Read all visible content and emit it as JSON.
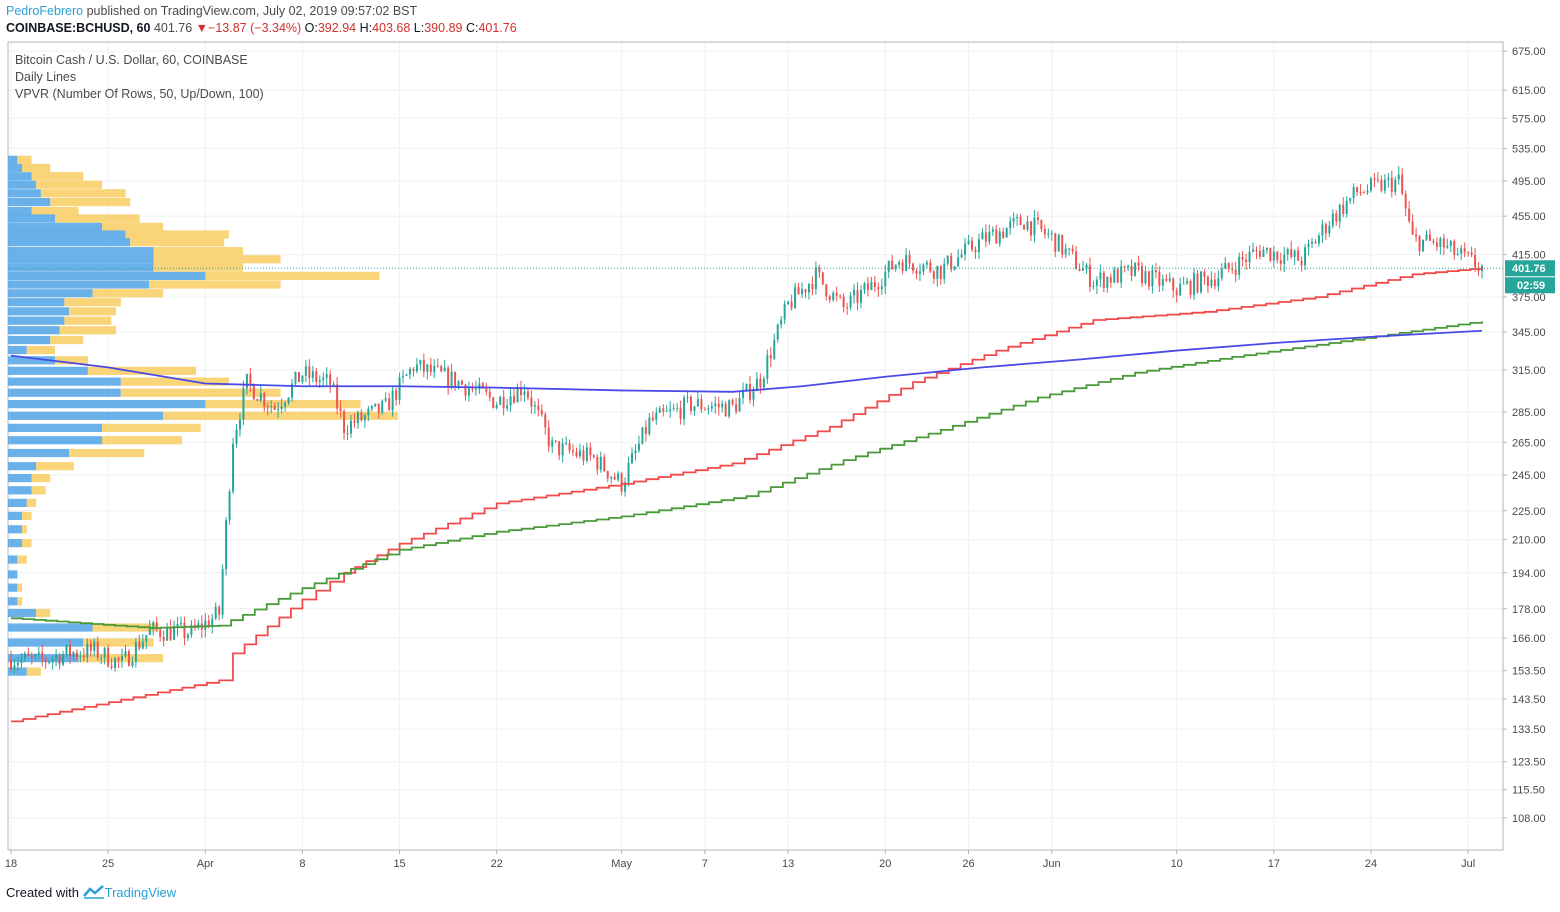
{
  "header": {
    "author": "PedroFebrero",
    "published_text": " published on TradingView.com, July 02, 2019 09:57:02 BST",
    "symbol": "COINBASE:BCHUSD, 60",
    "last": "401.76",
    "change": "−13.87 (−3.34%)",
    "o_label": "O:",
    "o": "392.94",
    "h_label": "H:",
    "h": "403.68",
    "l_label": "L:",
    "l": "390.89",
    "c_label": "C:",
    "c": "401.76"
  },
  "legend": {
    "title": "Bitcoin Cash / U.S. Dollar, 60, COINBASE",
    "indicator1": "Daily Lines",
    "indicator2": "VPVR (Number Of Rows, 50, Up/Down, 100)"
  },
  "footer": {
    "created_with": "Created with",
    "brand": "TradingView"
  },
  "colors": {
    "up": "#26a69a",
    "down": "#ef5350",
    "red_line": "#f24a4a",
    "green_line": "#4a9a3a",
    "blue_line": "#4a4ae8",
    "vp_up": "#5aa8e8",
    "vp_down": "#f8cf6a",
    "price_label": "#26a69a"
  },
  "chart_data": {
    "type": "candlestick",
    "y_scale": "log",
    "ylim": [
      100,
      690
    ],
    "y_ticks": [
      "675.00",
      "615.00",
      "575.00",
      "535.00",
      "495.00",
      "455.00",
      "415.00",
      "375.00",
      "345.00",
      "315.00",
      "285.00",
      "265.00",
      "245.00",
      "225.00",
      "210.00",
      "194.00",
      "178.00",
      "166.00",
      "153.50",
      "143.50",
      "133.50",
      "123.50",
      "115.50",
      "108.00"
    ],
    "y_tick_values": [
      675,
      615,
      575,
      535,
      495,
      455,
      415,
      375,
      345,
      315,
      285,
      265,
      245,
      225,
      210,
      194,
      178,
      166,
      153.5,
      143.5,
      133.5,
      123.5,
      115.5,
      108
    ],
    "x_start": "2019-03-18",
    "x_end": "2019-07-02",
    "x_ticks": [
      {
        "label": "18",
        "date": "2019-03-18"
      },
      {
        "label": "25",
        "date": "2019-03-25"
      },
      {
        "label": "Apr",
        "date": "2019-04-01"
      },
      {
        "label": "8",
        "date": "2019-04-08"
      },
      {
        "label": "15",
        "date": "2019-04-15"
      },
      {
        "label": "22",
        "date": "2019-04-22"
      },
      {
        "label": "May",
        "date": "2019-05-01"
      },
      {
        "label": "7",
        "date": "2019-05-07"
      },
      {
        "label": "13",
        "date": "2019-05-13"
      },
      {
        "label": "20",
        "date": "2019-05-20"
      },
      {
        "label": "26",
        "date": "2019-05-26"
      },
      {
        "label": "Jun",
        "date": "2019-06-01"
      },
      {
        "label": "10",
        "date": "2019-06-10"
      },
      {
        "label": "17",
        "date": "2019-06-17"
      },
      {
        "label": "24",
        "date": "2019-06-24"
      },
      {
        "label": "Jul",
        "date": "2019-07-01"
      }
    ],
    "price_path": [
      {
        "date": "2019-03-18",
        "price": 158
      },
      {
        "date": "2019-03-20",
        "price": 157
      },
      {
        "date": "2019-03-22",
        "price": 160
      },
      {
        "date": "2019-03-24",
        "price": 161
      },
      {
        "date": "2019-03-26",
        "price": 156
      },
      {
        "date": "2019-03-28",
        "price": 169
      },
      {
        "date": "2019-03-31",
        "price": 168
      },
      {
        "date": "2019-04-02",
        "price": 176
      },
      {
        "date": "2019-04-03",
        "price": 268
      },
      {
        "date": "2019-04-04",
        "price": 305
      },
      {
        "date": "2019-04-06",
        "price": 288
      },
      {
        "date": "2019-04-08",
        "price": 312
      },
      {
        "date": "2019-04-10",
        "price": 305
      },
      {
        "date": "2019-04-11",
        "price": 275
      },
      {
        "date": "2019-04-14",
        "price": 288
      },
      {
        "date": "2019-04-16",
        "price": 318
      },
      {
        "date": "2019-04-19",
        "price": 307
      },
      {
        "date": "2019-04-22",
        "price": 292
      },
      {
        "date": "2019-04-24",
        "price": 303
      },
      {
        "date": "2019-04-26",
        "price": 262
      },
      {
        "date": "2019-04-29",
        "price": 255
      },
      {
        "date": "2019-05-01",
        "price": 240
      },
      {
        "date": "2019-05-03",
        "price": 278
      },
      {
        "date": "2019-05-06",
        "price": 290
      },
      {
        "date": "2019-05-09",
        "price": 288
      },
      {
        "date": "2019-05-11",
        "price": 308
      },
      {
        "date": "2019-05-13",
        "price": 368
      },
      {
        "date": "2019-05-15",
        "price": 395
      },
      {
        "date": "2019-05-17",
        "price": 365
      },
      {
        "date": "2019-05-19",
        "price": 385
      },
      {
        "date": "2019-05-21",
        "price": 410
      },
      {
        "date": "2019-05-24",
        "price": 400
      },
      {
        "date": "2019-05-27",
        "price": 430
      },
      {
        "date": "2019-05-30",
        "price": 450
      },
      {
        "date": "2019-06-01",
        "price": 432
      },
      {
        "date": "2019-06-04",
        "price": 390
      },
      {
        "date": "2019-06-07",
        "price": 398
      },
      {
        "date": "2019-06-10",
        "price": 382
      },
      {
        "date": "2019-06-13",
        "price": 395
      },
      {
        "date": "2019-06-16",
        "price": 420
      },
      {
        "date": "2019-06-19",
        "price": 410
      },
      {
        "date": "2019-06-21",
        "price": 450
      },
      {
        "date": "2019-06-23",
        "price": 482
      },
      {
        "date": "2019-06-26",
        "price": 495
      },
      {
        "date": "2019-06-27",
        "price": 430
      },
      {
        "date": "2019-06-29",
        "price": 425
      },
      {
        "date": "2019-07-02",
        "price": 401.76
      }
    ],
    "series": [
      {
        "color": "red",
        "points": [
          {
            "date": "2019-03-18",
            "price": 136
          },
          {
            "date": "2019-04-02",
            "price": 150
          },
          {
            "date": "2019-04-03",
            "price": 160
          },
          {
            "date": "2019-04-08",
            "price": 182
          },
          {
            "date": "2019-04-11",
            "price": 194
          },
          {
            "date": "2019-04-15",
            "price": 208
          },
          {
            "date": "2019-04-22",
            "price": 229
          },
          {
            "date": "2019-05-01",
            "price": 240
          },
          {
            "date": "2019-05-09",
            "price": 252
          },
          {
            "date": "2019-05-16",
            "price": 275
          },
          {
            "date": "2019-05-22",
            "price": 306
          },
          {
            "date": "2019-05-28",
            "price": 330
          },
          {
            "date": "2019-06-04",
            "price": 355
          },
          {
            "date": "2019-06-12",
            "price": 362
          },
          {
            "date": "2019-06-20",
            "price": 375
          },
          {
            "date": "2019-06-27",
            "price": 396
          },
          {
            "date": "2019-07-02",
            "price": 402
          }
        ]
      },
      {
        "color": "green",
        "points": [
          {
            "date": "2019-03-18",
            "price": 174
          },
          {
            "date": "2019-03-28",
            "price": 170
          },
          {
            "date": "2019-04-02",
            "price": 171
          },
          {
            "date": "2019-04-08",
            "price": 187
          },
          {
            "date": "2019-04-15",
            "price": 205
          },
          {
            "date": "2019-04-22",
            "price": 214
          },
          {
            "date": "2019-05-01",
            "price": 222
          },
          {
            "date": "2019-05-10",
            "price": 233
          },
          {
            "date": "2019-05-17",
            "price": 254
          },
          {
            "date": "2019-05-24",
            "price": 273
          },
          {
            "date": "2019-05-31",
            "price": 295
          },
          {
            "date": "2019-06-07",
            "price": 313
          },
          {
            "date": "2019-06-14",
            "price": 325
          },
          {
            "date": "2019-06-21",
            "price": 336
          },
          {
            "date": "2019-07-02",
            "price": 354
          }
        ]
      },
      {
        "color": "blue",
        "points": [
          {
            "date": "2019-03-18",
            "price": 326
          },
          {
            "date": "2019-03-25",
            "price": 317
          },
          {
            "date": "2019-04-01",
            "price": 305
          },
          {
            "date": "2019-04-08",
            "price": 303
          },
          {
            "date": "2019-04-15",
            "price": 303
          },
          {
            "date": "2019-04-22",
            "price": 302
          },
          {
            "date": "2019-05-01",
            "price": 300
          },
          {
            "date": "2019-05-09",
            "price": 299
          },
          {
            "date": "2019-05-14",
            "price": 303
          },
          {
            "date": "2019-05-20",
            "price": 310
          },
          {
            "date": "2019-05-27",
            "price": 317
          },
          {
            "date": "2019-06-03",
            "price": 323
          },
          {
            "date": "2019-06-10",
            "price": 330
          },
          {
            "date": "2019-06-17",
            "price": 336
          },
          {
            "date": "2019-06-24",
            "price": 341
          },
          {
            "date": "2019-07-02",
            "price": 346
          }
        ]
      }
    ],
    "volume_profile": [
      {
        "price": 520,
        "up": 2,
        "down": 3
      },
      {
        "price": 510,
        "up": 3,
        "down": 6
      },
      {
        "price": 500,
        "up": 5,
        "down": 11
      },
      {
        "price": 490,
        "up": 6,
        "down": 14
      },
      {
        "price": 480,
        "up": 7,
        "down": 18
      },
      {
        "price": 470,
        "up": 9,
        "down": 17
      },
      {
        "price": 460,
        "up": 5,
        "down": 10
      },
      {
        "price": 452,
        "up": 10,
        "down": 18
      },
      {
        "price": 443,
        "up": 20,
        "down": 13
      },
      {
        "price": 435,
        "up": 25,
        "down": 22
      },
      {
        "price": 427,
        "up": 26,
        "down": 20
      },
      {
        "price": 418,
        "up": 31,
        "down": 19
      },
      {
        "price": 410,
        "up": 31,
        "down": 27
      },
      {
        "price": 402,
        "up": 31,
        "down": 19
      },
      {
        "price": 394,
        "up": 42,
        "down": 37
      },
      {
        "price": 386,
        "up": 30,
        "down": 28
      },
      {
        "price": 378,
        "up": 18,
        "down": 15
      },
      {
        "price": 370,
        "up": 12,
        "down": 12
      },
      {
        "price": 362,
        "up": 13,
        "down": 10
      },
      {
        "price": 354,
        "up": 12,
        "down": 10
      },
      {
        "price": 346,
        "up": 11,
        "down": 12
      },
      {
        "price": 338,
        "up": 9,
        "down": 7
      },
      {
        "price": 330,
        "up": 4,
        "down": 6
      },
      {
        "price": 322,
        "up": 10,
        "down": 7
      },
      {
        "price": 314,
        "up": 17,
        "down": 23
      },
      {
        "price": 306,
        "up": 24,
        "down": 23
      },
      {
        "price": 298,
        "up": 24,
        "down": 34
      },
      {
        "price": 290,
        "up": 42,
        "down": 33
      },
      {
        "price": 282,
        "up": 33,
        "down": 50
      },
      {
        "price": 274,
        "up": 20,
        "down": 21
      },
      {
        "price": 266,
        "up": 20,
        "down": 17
      },
      {
        "price": 258,
        "up": 13,
        "down": 16
      },
      {
        "price": 250,
        "up": 6,
        "down": 8
      },
      {
        "price": 243,
        "up": 5,
        "down": 4
      },
      {
        "price": 236,
        "up": 5,
        "down": 3
      },
      {
        "price": 229,
        "up": 4,
        "down": 2
      },
      {
        "price": 222,
        "up": 3,
        "down": 2
      },
      {
        "price": 215,
        "up": 3,
        "down": 1
      },
      {
        "price": 208,
        "up": 3,
        "down": 2
      },
      {
        "price": 200,
        "up": 2,
        "down": 2
      },
      {
        "price": 193,
        "up": 2,
        "down": 0
      },
      {
        "price": 187,
        "up": 2,
        "down": 1
      },
      {
        "price": 181,
        "up": 2,
        "down": 1
      },
      {
        "price": 176,
        "up": 6,
        "down": 3
      },
      {
        "price": 170,
        "up": 18,
        "down": 14
      },
      {
        "price": 164,
        "up": 16,
        "down": 15
      },
      {
        "price": 158,
        "up": 15,
        "down": 18
      },
      {
        "price": 153,
        "up": 4,
        "down": 3
      }
    ],
    "last_price": 401.76,
    "last_price_label": "401.76",
    "countdown_label": "02:59"
  }
}
